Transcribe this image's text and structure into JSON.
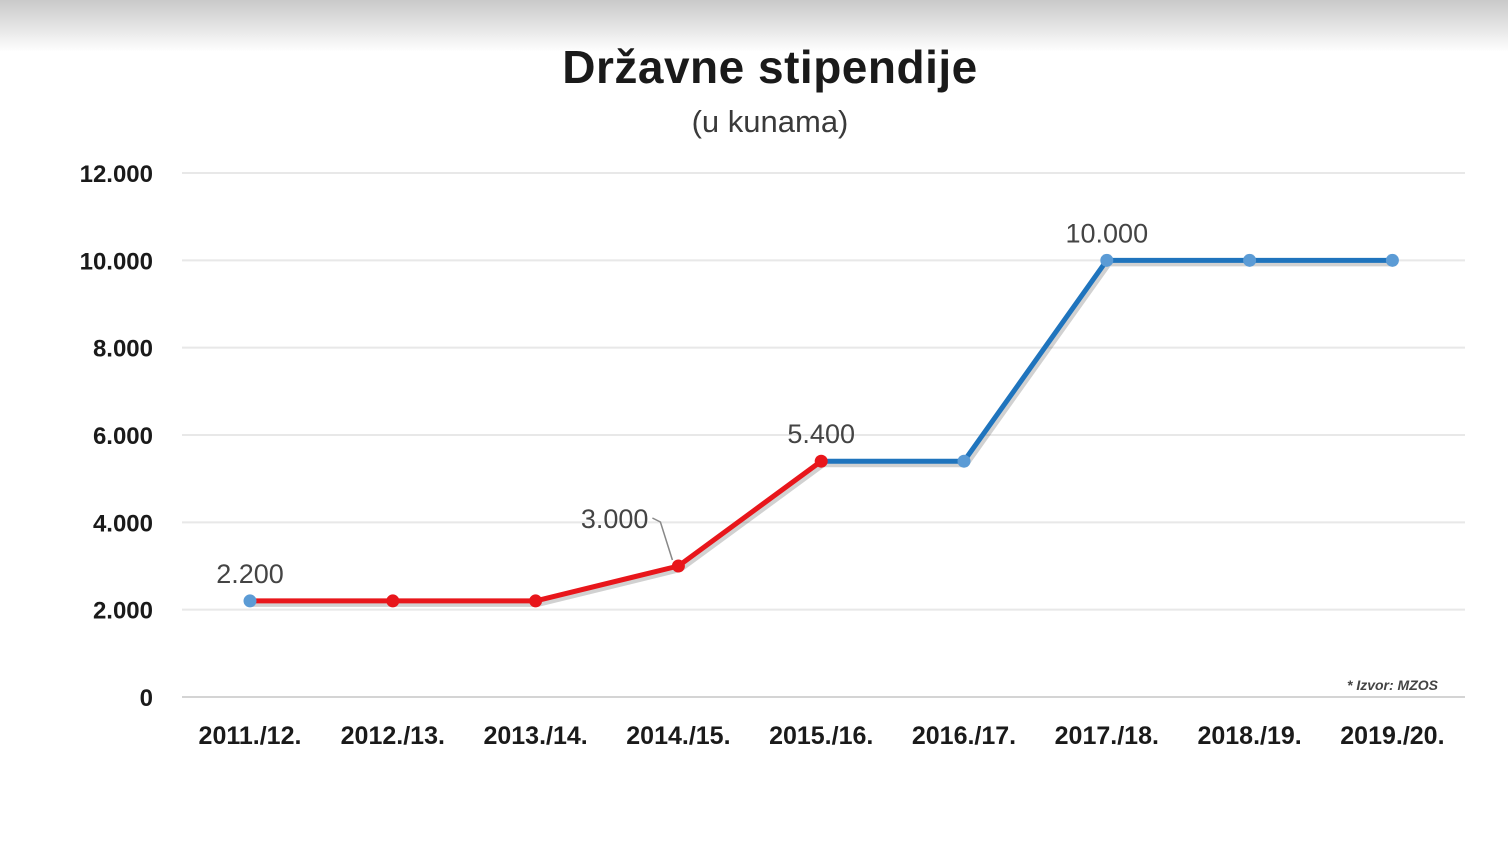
{
  "chart_data": {
    "type": "line",
    "title": "Državne stipendije",
    "subtitle": "(u kunama)",
    "categories": [
      "2011./12.",
      "2012./13.",
      "2013./14.",
      "2014./15.",
      "2015./16.",
      "2016./17.",
      "2017./18.",
      "2018./19.",
      "2019./20."
    ],
    "values": [
      2200,
      2200,
      2200,
      3000,
      5400,
      5400,
      10000,
      10000,
      10000
    ],
    "ylim": [
      0,
      12000
    ],
    "yticks": [
      0,
      2000,
      4000,
      6000,
      8000,
      10000,
      12000
    ],
    "ytick_labels": [
      "0",
      "2.000",
      "4.000",
      "6.000",
      "8.000",
      "10.000",
      "12.000"
    ],
    "data_labels": [
      {
        "index": 0,
        "text": "2.200"
      },
      {
        "index": 3,
        "text": "3.000"
      },
      {
        "index": 4,
        "text": "5.400"
      },
      {
        "index": 6,
        "text": "10.000"
      }
    ],
    "segments": [
      {
        "from": 0,
        "to": 4,
        "color": "#e8161b"
      },
      {
        "from": 4,
        "to": 8,
        "color": "#1f74bd"
      }
    ],
    "marker_colors": [
      "#5b9bd5",
      "#e8161b",
      "#e8161b",
      "#e8161b",
      "#e8161b",
      "#5b9bd5",
      "#5b9bd5",
      "#5b9bd5",
      "#5b9bd5"
    ],
    "grid": true,
    "source_note": "* Izvor: MZOS"
  }
}
